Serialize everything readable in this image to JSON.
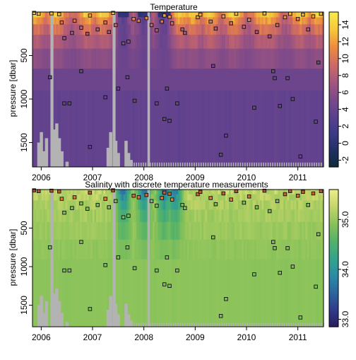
{
  "chart_data": [
    {
      "type": "heatmap",
      "title": "Temperature",
      "xlabel": "",
      "ylabel": "pressure [dbar]",
      "x_ticks": [
        "2006",
        "2007",
        "2008",
        "2009",
        "2010",
        "2011"
      ],
      "x_tick_values": [
        2006,
        2007,
        2008,
        2009,
        2010,
        2011
      ],
      "xlim": [
        2005.83,
        2011.5
      ],
      "y_ticks": [
        "500",
        "1000",
        "1500"
      ],
      "y_tick_values": [
        500,
        1000,
        1500
      ],
      "ylim": [
        1780,
        0
      ],
      "colorbar": {
        "ticks": [
          "-2",
          "0",
          "2",
          "4",
          "6",
          "8",
          "10",
          "12",
          "14"
        ],
        "tick_values": [
          -2,
          0,
          2,
          4,
          6,
          8,
          10,
          12,
          14
        ],
        "range": [
          -2.8,
          15.5
        ],
        "colors": [
          "#102a3a",
          "#1f2f63",
          "#3c3a88",
          "#5b418f",
          "#7c4a8a",
          "#a4577f",
          "#cf6a66",
          "#ee8a3f",
          "#f7c537",
          "#f9e94a"
        ]
      },
      "deep_fill_value": 3.8,
      "missing_color": "#b3b3b3",
      "gap_columns_x": [
        2006.18,
        2006.19,
        2007.39,
        2007.4,
        2008.07
      ],
      "missing_bottom_profile": [
        {
          "x": 2005.95,
          "top": 1500
        },
        {
          "x": 2006.0,
          "top": 1380
        },
        {
          "x": 2006.05,
          "top": 1600
        },
        {
          "x": 2006.1,
          "top": 1450
        },
        {
          "x": 2006.25,
          "top": 1350
        },
        {
          "x": 2006.3,
          "top": 1280
        },
        {
          "x": 2006.35,
          "top": 1450
        },
        {
          "x": 2006.4,
          "top": 1600
        },
        {
          "x": 2006.5,
          "top": 1720
        },
        {
          "x": 2007.3,
          "top": 1560
        },
        {
          "x": 2007.35,
          "top": 1380
        },
        {
          "x": 2007.45,
          "top": 1480
        },
        {
          "x": 2007.5,
          "top": 1620
        },
        {
          "x": 2007.65,
          "top": 1480
        },
        {
          "x": 2007.7,
          "top": 1620
        },
        {
          "x": 2007.75,
          "top": 1700
        }
      ],
      "surface_warm_x": [
        2005.9,
        2006.3,
        2006.9,
        2007.2,
        2008.7,
        2008.95,
        2009.3,
        2009.75,
        2010.3,
        2010.45,
        2011.05,
        2011.4
      ],
      "surface_cold_x": [
        2007.6,
        2008.0,
        2008.4
      ],
      "discrete_points": [
        {
          "x": 2005.86,
          "p": 10
        },
        {
          "x": 2005.95,
          "p": 20
        },
        {
          "x": 2006.2,
          "p": 15
        },
        {
          "x": 2006.35,
          "p": 25
        },
        {
          "x": 2006.4,
          "p": 120
        },
        {
          "x": 2006.45,
          "p": 300
        },
        {
          "x": 2006.6,
          "p": 240
        },
        {
          "x": 2006.65,
          "p": 100
        },
        {
          "x": 2006.78,
          "p": 180
        },
        {
          "x": 2006.9,
          "p": 250
        },
        {
          "x": 2006.95,
          "p": 40
        },
        {
          "x": 2007.1,
          "p": 200
        },
        {
          "x": 2007.25,
          "p": 120
        },
        {
          "x": 2007.32,
          "p": 230
        },
        {
          "x": 2007.4,
          "p": 10
        },
        {
          "x": 2007.45,
          "p": 150
        },
        {
          "x": 2007.6,
          "p": 360
        },
        {
          "x": 2007.7,
          "p": 340
        },
        {
          "x": 2007.8,
          "p": 80
        },
        {
          "x": 2007.9,
          "p": 100
        },
        {
          "x": 2008.05,
          "p": 70
        },
        {
          "x": 2008.15,
          "p": 150
        },
        {
          "x": 2008.25,
          "p": 210
        },
        {
          "x": 2008.35,
          "p": 110
        },
        {
          "x": 2008.4,
          "p": 40
        },
        {
          "x": 2008.5,
          "p": 55
        },
        {
          "x": 2008.55,
          "p": 130
        },
        {
          "x": 2008.75,
          "p": 200
        },
        {
          "x": 2008.8,
          "p": 240
        },
        {
          "x": 2009.05,
          "p": 60
        },
        {
          "x": 2009.1,
          "p": 30
        },
        {
          "x": 2009.3,
          "p": 110
        },
        {
          "x": 2009.4,
          "p": 190
        },
        {
          "x": 2009.55,
          "p": 50
        },
        {
          "x": 2009.7,
          "p": 130
        },
        {
          "x": 2009.8,
          "p": 20
        },
        {
          "x": 2009.95,
          "p": 170
        },
        {
          "x": 2010.05,
          "p": 90
        },
        {
          "x": 2010.2,
          "p": 230
        },
        {
          "x": 2010.35,
          "p": 15
        },
        {
          "x": 2010.45,
          "p": 280
        },
        {
          "x": 2010.6,
          "p": 150
        },
        {
          "x": 2010.75,
          "p": 60
        },
        {
          "x": 2010.85,
          "p": 20
        },
        {
          "x": 2011.0,
          "p": 80
        },
        {
          "x": 2011.1,
          "p": 30
        },
        {
          "x": 2011.2,
          "p": 200
        },
        {
          "x": 2011.3,
          "p": 50
        },
        {
          "x": 2011.45,
          "p": 20
        },
        {
          "x": 2006.17,
          "p": 750
        },
        {
          "x": 2006.45,
          "p": 1050
        },
        {
          "x": 2006.55,
          "p": 1050
        },
        {
          "x": 2006.78,
          "p": 680
        },
        {
          "x": 2006.95,
          "p": 1550
        },
        {
          "x": 2007.25,
          "p": 980
        },
        {
          "x": 2007.5,
          "p": 880
        },
        {
          "x": 2007.68,
          "p": 750
        },
        {
          "x": 2007.82,
          "p": 1020
        },
        {
          "x": 2008.25,
          "p": 1050
        },
        {
          "x": 2008.4,
          "p": 1230
        },
        {
          "x": 2008.45,
          "p": 880
        },
        {
          "x": 2008.5,
          "p": 1250
        },
        {
          "x": 2008.65,
          "p": 1050
        },
        {
          "x": 2009.35,
          "p": 620
        },
        {
          "x": 2009.5,
          "p": 1640
        },
        {
          "x": 2009.6,
          "p": 1420
        },
        {
          "x": 2010.15,
          "p": 1100
        },
        {
          "x": 2010.52,
          "p": 680
        },
        {
          "x": 2010.55,
          "p": 760
        },
        {
          "x": 2010.65,
          "p": 1080
        },
        {
          "x": 2010.8,
          "p": 760
        },
        {
          "x": 2010.9,
          "p": 1000
        },
        {
          "x": 2011.35,
          "p": 1260
        },
        {
          "x": 2011.4,
          "p": 580
        },
        {
          "x": 2011.05,
          "p": 1660
        }
      ]
    },
    {
      "type": "heatmap",
      "title": "Salinity with discrete temperature measurements",
      "xlabel": "",
      "ylabel": "pressure [dbar]",
      "x_ticks": [
        "2006",
        "2007",
        "2008",
        "2009",
        "2010",
        "2011"
      ],
      "x_tick_values": [
        2006,
        2007,
        2008,
        2009,
        2010,
        2011
      ],
      "xlim": [
        2005.83,
        2011.5
      ],
      "y_ticks": [
        "500",
        "1000",
        "1500"
      ],
      "y_tick_values": [
        500,
        1000,
        1500
      ],
      "ylim": [
        1780,
        0
      ],
      "colorbar": {
        "ticks": [
          "33.0",
          "34.0",
          "35.0"
        ],
        "tick_values": [
          33.0,
          34.0,
          35.0
        ],
        "range": [
          32.85,
          35.6
        ],
        "colors": [
          "#2a1a5e",
          "#2f3a8a",
          "#2c63a0",
          "#2a8ba5",
          "#33a48c",
          "#52b16a",
          "#85c15a",
          "#c1d467",
          "#ecec86"
        ]
      },
      "deep_fill_value": 34.95,
      "missing_color": "#b3b3b3",
      "gap_columns_x": [
        2006.18,
        2006.19,
        2007.39,
        2007.4,
        2008.07
      ],
      "missing_bottom_profile": [
        {
          "x": 2005.95,
          "top": 1500
        },
        {
          "x": 2006.0,
          "top": 1380
        },
        {
          "x": 2006.05,
          "top": 1600
        },
        {
          "x": 2006.1,
          "top": 1450
        },
        {
          "x": 2006.25,
          "top": 1350
        },
        {
          "x": 2006.3,
          "top": 1280
        },
        {
          "x": 2006.35,
          "top": 1450
        },
        {
          "x": 2006.4,
          "top": 1600
        },
        {
          "x": 2006.5,
          "top": 1720
        },
        {
          "x": 2007.3,
          "top": 1560
        },
        {
          "x": 2007.35,
          "top": 1380
        },
        {
          "x": 2007.45,
          "top": 1480
        },
        {
          "x": 2007.5,
          "top": 1620
        },
        {
          "x": 2007.65,
          "top": 1480
        },
        {
          "x": 2007.7,
          "top": 1620
        },
        {
          "x": 2007.75,
          "top": 1700
        }
      ],
      "surface_fresh_x": [
        2007.6,
        2008.0,
        2008.4,
        2008.6
      ],
      "discrete_points_ref": "same as Temperature panel"
    }
  ]
}
